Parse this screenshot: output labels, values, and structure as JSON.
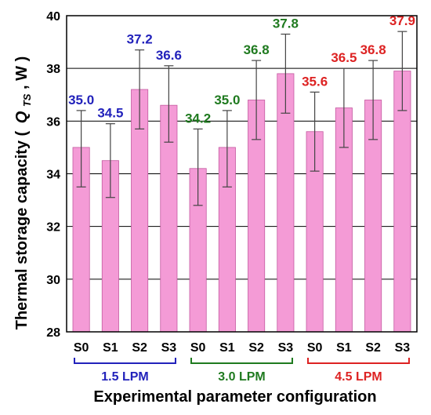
{
  "colors": {
    "bar_fill": "#f49bd6",
    "bar_stroke": "#c45aa0",
    "grid": "#000000",
    "error_bar": "#444444",
    "group_colors": [
      "#2222bb",
      "#1f7a1f",
      "#dd2222"
    ]
  },
  "chart_data": {
    "type": "bar",
    "title": "",
    "xlabel": "Experimental parameter configuration",
    "ylabel": {
      "prefix": "Thermal storage capacity (",
      "symbol": "Q",
      "subscript": "TS",
      "suffix": ", W )"
    },
    "ylim": [
      28,
      40
    ],
    "yticks": [
      "28",
      "30",
      "32",
      "34",
      "36",
      "38",
      "40"
    ],
    "grid": true,
    "categories": [
      "S0",
      "S1",
      "S2",
      "S3",
      "S0",
      "S1",
      "S2",
      "S3",
      "S0",
      "S1",
      "S2",
      "S3"
    ],
    "values": [
      35.0,
      34.5,
      37.2,
      36.6,
      34.2,
      35.0,
      36.8,
      37.8,
      35.6,
      36.5,
      36.8,
      37.9
    ],
    "value_labels": [
      "35.0",
      "34.5",
      "37.2",
      "36.6",
      "34.2",
      "35.0",
      "36.8",
      "37.8",
      "35.6",
      "36.5",
      "36.8",
      "37.9"
    ],
    "error_low": [
      33.5,
      33.1,
      35.7,
      35.2,
      32.8,
      33.5,
      35.3,
      36.3,
      34.1,
      35.0,
      35.3,
      36.4
    ],
    "error_high": [
      36.4,
      35.9,
      38.7,
      38.1,
      35.7,
      36.4,
      38.3,
      39.3,
      37.1,
      38.0,
      38.3,
      39.4
    ],
    "groups": [
      {
        "label": "1.5 LPM",
        "start": 0,
        "end": 3
      },
      {
        "label": "3.0 LPM",
        "start": 4,
        "end": 7
      },
      {
        "label": "4.5 LPM",
        "start": 8,
        "end": 11
      }
    ]
  }
}
